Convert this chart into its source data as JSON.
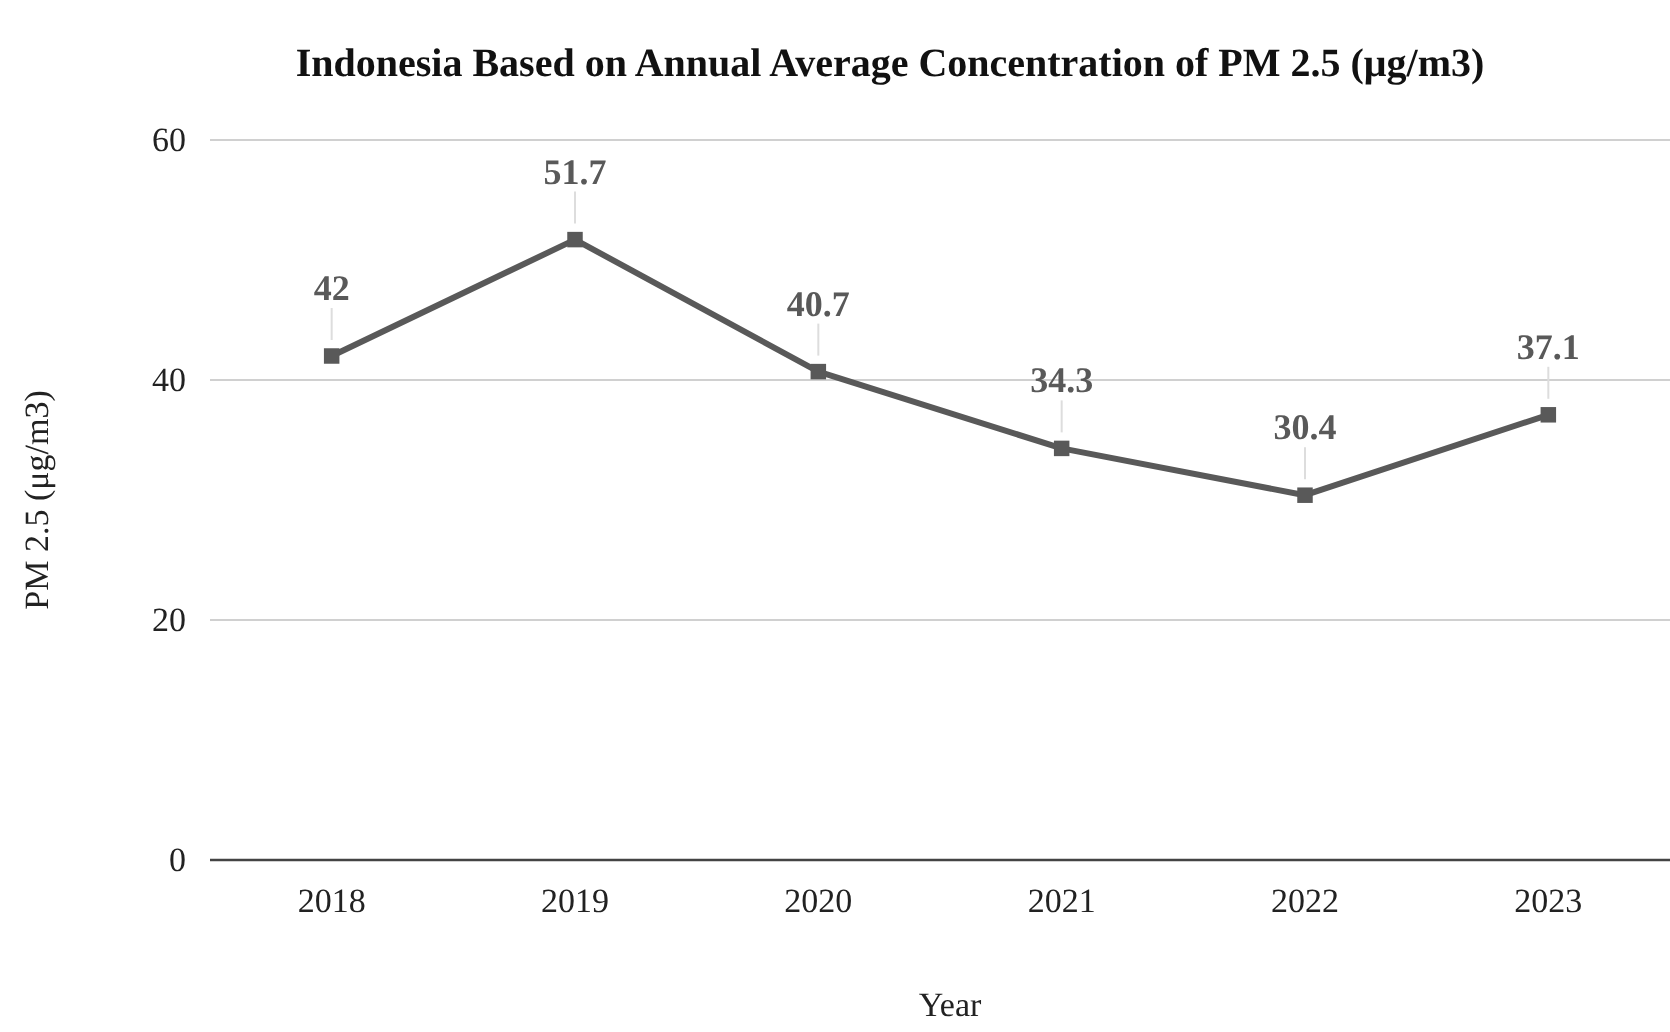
{
  "chart_data": {
    "type": "line",
    "title": "Indonesia Based on Annual Average Concentration of PM 2.5 (μg/m3)",
    "xlabel": "Year",
    "ylabel": "PM 2.5 (μg/m3)",
    "categories": [
      "2018",
      "2019",
      "2020",
      "2021",
      "2022",
      "2023"
    ],
    "series": [
      {
        "color": "#595959",
        "values": [
          42,
          51.7,
          40.7,
          34.3,
          30.4,
          37.1
        ]
      }
    ],
    "ylim": [
      0,
      60
    ],
    "yticks": [
      0,
      20,
      40,
      60
    ],
    "grid": "y",
    "marker": "square",
    "line_style": "solid",
    "data_labels": true
  }
}
